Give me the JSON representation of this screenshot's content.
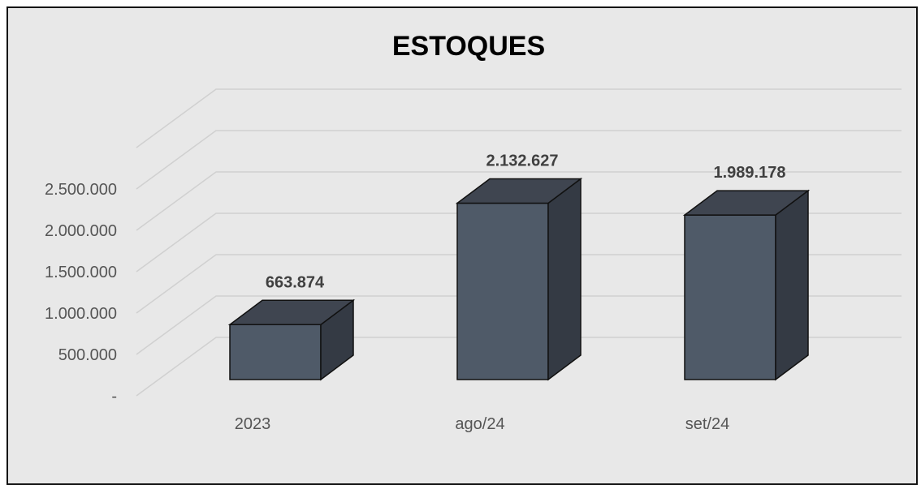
{
  "chart_data": {
    "type": "bar",
    "title": "ESTOQUES",
    "categories": [
      "2023",
      "ago/24",
      "set/24"
    ],
    "values": [
      663874,
      2132627,
      1989178
    ],
    "data_labels": [
      "663.874",
      "2.132.627",
      "1.989.178"
    ],
    "y_ticks": [
      {
        "value": 0,
        "label": "-"
      },
      {
        "value": 500000,
        "label": "500.000"
      },
      {
        "value": 1000000,
        "label": "1.000.000"
      },
      {
        "value": 1500000,
        "label": "1.500.000"
      },
      {
        "value": 2000000,
        "label": "2.000.000"
      },
      {
        "value": 2500000,
        "label": "2.500.000"
      }
    ],
    "ylim": [
      0,
      3000000
    ],
    "grid": true,
    "legend": "none",
    "style": "3d-column",
    "colors": {
      "bar_front": "#4f5a68",
      "bar_top": "#3f4550",
      "bar_side": "#343a44",
      "bar_outline": "#111111",
      "background": "#e8e8e8",
      "gridline": "#d0d0d0"
    }
  }
}
